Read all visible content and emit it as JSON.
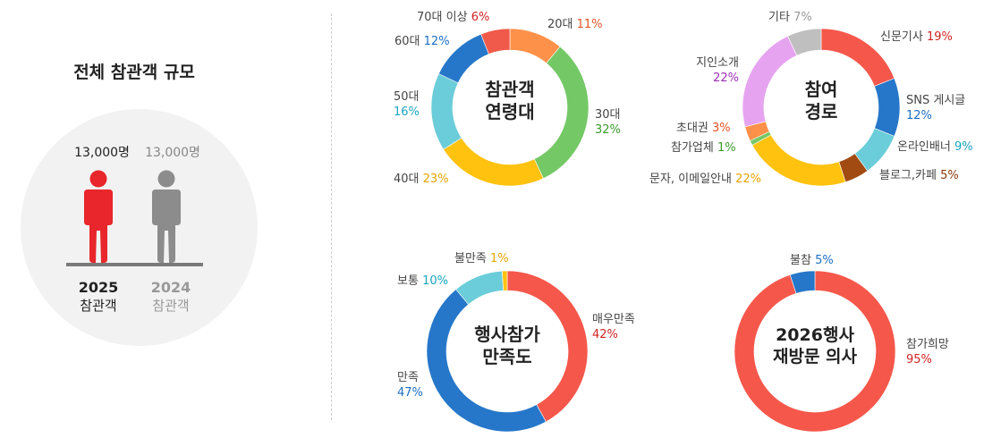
{
  "summary": {
    "title": "전체 참관객 규모",
    "current": {
      "count": "13,000명",
      "year": "2025",
      "label": "참관객",
      "color": "#e8262b"
    },
    "previous": {
      "count": "13,000명",
      "year": "2024",
      "label": "참관객",
      "color": "#8c8c8c"
    }
  },
  "chart_data": [
    {
      "type": "pie",
      "title": "참관객 연령대",
      "title_lines": [
        "참관객",
        "연령대"
      ],
      "categories": [
        "20대",
        "30대",
        "40대",
        "50대",
        "60대",
        "70대 이상"
      ],
      "values": [
        11,
        32,
        23,
        16,
        12,
        6
      ],
      "value_labels": [
        "11%",
        "32%",
        "23%",
        "16%",
        "12%",
        "6%"
      ],
      "colors": [
        "#fd914a",
        "#74c866",
        "#fec20f",
        "#6bcdd9",
        "#2677c9",
        "#f05a4a"
      ],
      "label_colors": [
        "#e2532a",
        "#3a9a2a",
        "#e6a500",
        "#1aa5c0",
        "#1e6ec2",
        "#d02424"
      ]
    },
    {
      "type": "pie",
      "title": "참여 경로",
      "title_lines": [
        "참여",
        "경로"
      ],
      "categories": [
        "신문기사",
        "SNS 게시글",
        "온라인배너",
        "블로그,카페",
        "문자, 이메일안내",
        "참가업체",
        "초대권",
        "지인소개",
        "기타"
      ],
      "values": [
        19,
        12,
        9,
        5,
        22,
        1,
        3,
        22,
        7
      ],
      "value_labels": [
        "19%",
        "12%",
        "9%",
        "5%",
        "22%",
        "1%",
        "3%",
        "22%",
        "7%"
      ],
      "colors": [
        "#f5574b",
        "#2677c9",
        "#6bcdd9",
        "#a14b12",
        "#fec20f",
        "#74c866",
        "#fd914a",
        "#e6a4f0",
        "#bfbfbf"
      ],
      "label_colors": [
        "#d02424",
        "#1e6ec2",
        "#1aa5c0",
        "#8a3a0a",
        "#e6a500",
        "#3a9a2a",
        "#e2532a",
        "#9b2fb5",
        "#999999"
      ]
    },
    {
      "type": "pie",
      "title": "행사참가 만족도",
      "title_lines": [
        "행사참가",
        "만족도"
      ],
      "categories": [
        "매우만족",
        "만족",
        "보통",
        "불만족"
      ],
      "values": [
        42,
        47,
        10,
        1
      ],
      "value_labels": [
        "42%",
        "47%",
        "10%",
        "1%"
      ],
      "colors": [
        "#f5574b",
        "#2677c9",
        "#6bcdd9",
        "#fec20f"
      ],
      "label_colors": [
        "#d02424",
        "#1e6ec2",
        "#1aa5c0",
        "#e6a500"
      ]
    },
    {
      "type": "pie",
      "title": "2026행사 재방문 의사",
      "title_lines": [
        "2026행사",
        "재방문 의사"
      ],
      "categories": [
        "참가희망",
        "불참"
      ],
      "values": [
        95,
        5
      ],
      "value_labels": [
        "95%",
        "5%"
      ],
      "colors": [
        "#f5574b",
        "#2677c9"
      ],
      "label_colors": [
        "#d02424",
        "#1e6ec2"
      ]
    }
  ]
}
